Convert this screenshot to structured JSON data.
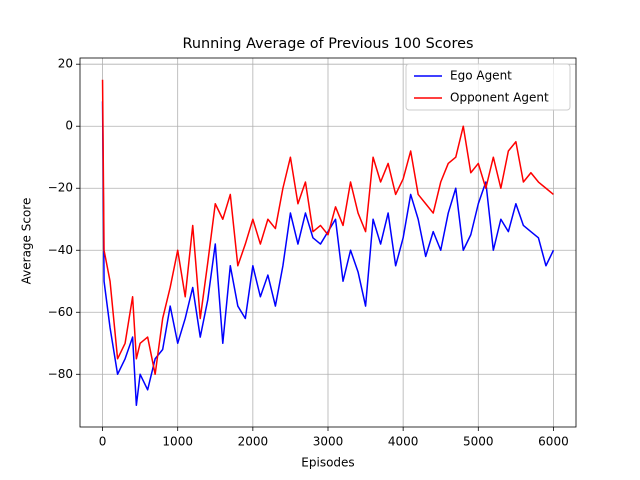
{
  "chart_data": {
    "type": "line",
    "title": "Running Average of Previous 100 Scores",
    "x_label": "Episodes",
    "y_label": "Average Score",
    "x": [
      0,
      20,
      100,
      200,
      300,
      400,
      450,
      500,
      600,
      700,
      800,
      900,
      1000,
      1100,
      1200,
      1300,
      1400,
      1500,
      1600,
      1700,
      1800,
      1900,
      2000,
      2100,
      2200,
      2300,
      2400,
      2500,
      2600,
      2700,
      2800,
      2900,
      3000,
      3100,
      3200,
      3300,
      3400,
      3500,
      3600,
      3700,
      3800,
      3900,
      4000,
      4100,
      4200,
      4300,
      4400,
      4500,
      4600,
      4700,
      4800,
      4900,
      5000,
      5100,
      5200,
      5300,
      5400,
      5500,
      5600,
      5700,
      5800,
      5900,
      6000
    ],
    "series": [
      {
        "name": "Ego Agent",
        "color": "#0000ff",
        "values": [
          8,
          -50,
          -65,
          -80,
          -75,
          -68,
          -90,
          -80,
          -85,
          -75,
          -72,
          -58,
          -70,
          -62,
          -52,
          -68,
          -56,
          -38,
          -70,
          -45,
          -58,
          -62,
          -45,
          -55,
          -48,
          -58,
          -45,
          -28,
          -38,
          -28,
          -36,
          -38,
          -34,
          -30,
          -50,
          -40,
          -47,
          -58,
          -30,
          -38,
          -28,
          -45,
          -36,
          -22,
          -30,
          -42,
          -34,
          -40,
          -28,
          -20,
          -40,
          -35,
          -25,
          -18,
          -40,
          -30,
          -34,
          -25,
          -32,
          -34,
          -36,
          -45,
          -40
        ]
      },
      {
        "name": "Opponent Agent",
        "color": "#ff0000",
        "values": [
          15,
          -40,
          -50,
          -75,
          -70,
          -55,
          -75,
          -70,
          -68,
          -80,
          -62,
          -52,
          -40,
          -55,
          -32,
          -62,
          -44,
          -25,
          -30,
          -22,
          -45,
          -38,
          -30,
          -38,
          -30,
          -33,
          -20,
          -10,
          -25,
          -18,
          -34,
          -32,
          -35,
          -26,
          -32,
          -18,
          -28,
          -34,
          -10,
          -18,
          -12,
          -22,
          -17,
          -8,
          -22,
          -25,
          -28,
          -18,
          -12,
          -10,
          0,
          -15,
          -12,
          -20,
          -10,
          -20,
          -8,
          -5,
          -18,
          -15,
          -18,
          -20,
          -22
        ]
      }
    ],
    "xlim": [
      -300,
      6300
    ],
    "ylim": [
      -97,
      22
    ],
    "xticks": [
      0,
      1000,
      2000,
      3000,
      4000,
      5000,
      6000
    ],
    "yticks": [
      {
        "value": -80,
        "label": "−80"
      },
      {
        "value": -60,
        "label": "−60"
      },
      {
        "value": -40,
        "label": "−40"
      },
      {
        "value": -20,
        "label": "−20"
      },
      0,
      20
    ],
    "grid": true,
    "legend": "upper right"
  }
}
